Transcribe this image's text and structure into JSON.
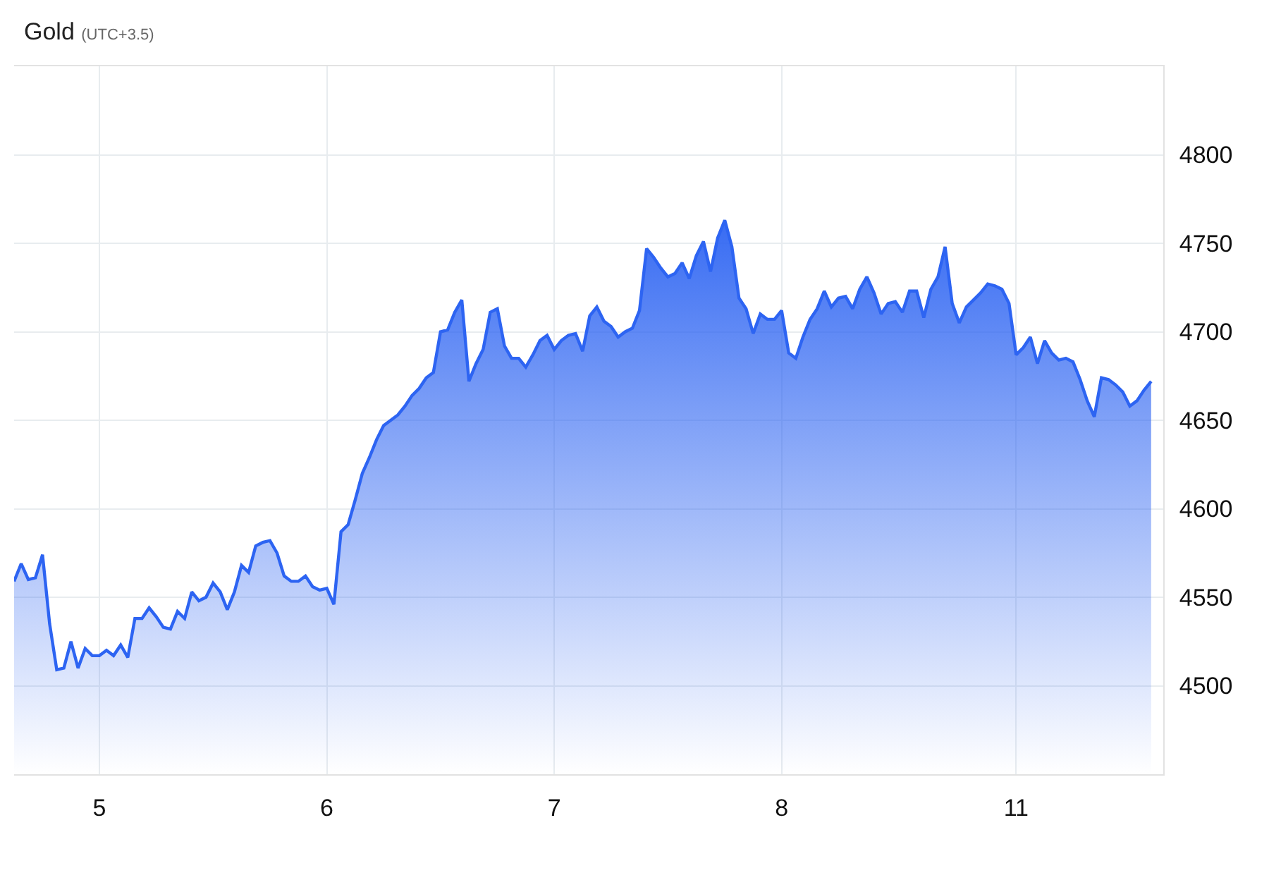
{
  "chart_data": {
    "type": "area",
    "title": "Gold",
    "subtitle": "(UTC+3.5)",
    "color": "#2d64f2",
    "categories": [
      null,
      null,
      null,
      null,
      null,
      null,
      null,
      null,
      null,
      null,
      null,
      null,
      "5",
      null,
      null,
      null,
      null,
      null,
      null,
      null,
      null,
      null,
      null,
      null,
      null,
      null,
      null,
      null,
      null,
      null,
      null,
      null,
      null,
      null,
      null,
      null,
      null,
      null,
      null,
      null,
      null,
      null,
      null,
      null,
      "6",
      null,
      null,
      null,
      null,
      null,
      null,
      null,
      null,
      null,
      null,
      null,
      null,
      null,
      null,
      null,
      null,
      null,
      null,
      null,
      null,
      null,
      null,
      null,
      null,
      null,
      null,
      null,
      null,
      null,
      null,
      null,
      "7",
      null,
      null,
      null,
      null,
      null,
      null,
      null,
      null,
      null,
      null,
      null,
      null,
      null,
      null,
      null,
      null,
      null,
      null,
      null,
      null,
      null,
      null,
      null,
      null,
      null,
      null,
      null,
      null,
      null,
      null,
      null,
      "8",
      null,
      null,
      null,
      null,
      null,
      null,
      null,
      null,
      null,
      null,
      null,
      null,
      null,
      null,
      null,
      null,
      null,
      null,
      null,
      null,
      null,
      null,
      null,
      null,
      null,
      null,
      null,
      null,
      null,
      null,
      null,
      null,
      "11",
      null,
      null,
      null,
      null,
      null,
      null,
      null,
      null,
      null,
      null,
      null,
      null,
      null,
      null,
      null,
      null,
      null,
      null,
      null
    ],
    "values": [
      4559,
      4569,
      4560,
      4561,
      4574,
      4535,
      4509,
      4510,
      4525,
      4510,
      4521,
      4517,
      4517,
      4520,
      4517,
      4523,
      4516,
      4538,
      4538,
      4544,
      4539,
      4533,
      4532,
      4542,
      4538,
      4553,
      4548,
      4550,
      4558,
      4553,
      4543,
      4553,
      4568,
      4564,
      4579,
      4581,
      4582,
      4575,
      4562,
      4559,
      4559,
      4562,
      4556,
      4554,
      4555,
      4546,
      4587,
      4591,
      4605,
      4620,
      4629,
      4639,
      4647,
      4650,
      4653,
      4658,
      4664,
      4668,
      4674,
      4677,
      4700,
      4701,
      4711,
      4718,
      4672,
      4682,
      4690,
      4711,
      4713,
      4692,
      4685,
      4685,
      4680,
      4687,
      4695,
      4698,
      4690,
      4695,
      4698,
      4699,
      4689,
      4709,
      4714,
      4706,
      4703,
      4697,
      4700,
      4702,
      4712,
      4747,
      4742,
      4736,
      4731,
      4733,
      4739,
      4730,
      4743,
      4751,
      4734,
      4753,
      4763,
      4748,
      4719,
      4713,
      4699,
      4710,
      4707,
      4707,
      4712,
      4688,
      4685,
      4697,
      4707,
      4713,
      4723,
      4714,
      4719,
      4720,
      4713,
      4724,
      4731,
      4722,
      4710,
      4716,
      4717,
      4711,
      4723,
      4723,
      4708,
      4724,
      4731,
      4748,
      4716,
      4705,
      4714,
      4718,
      4722,
      4727,
      4726,
      4724,
      4716,
      4687,
      4691,
      4697,
      4682,
      4695,
      4688,
      4684,
      4685,
      4683,
      4673,
      4661,
      4652,
      4674,
      4673,
      4670,
      4666,
      4658,
      4661,
      4667,
      4672
    ],
    "ylim": [
      4450,
      4850
    ],
    "yticks": [
      4500,
      4550,
      4600,
      4650,
      4700,
      4750,
      4800
    ],
    "grid": true
  }
}
